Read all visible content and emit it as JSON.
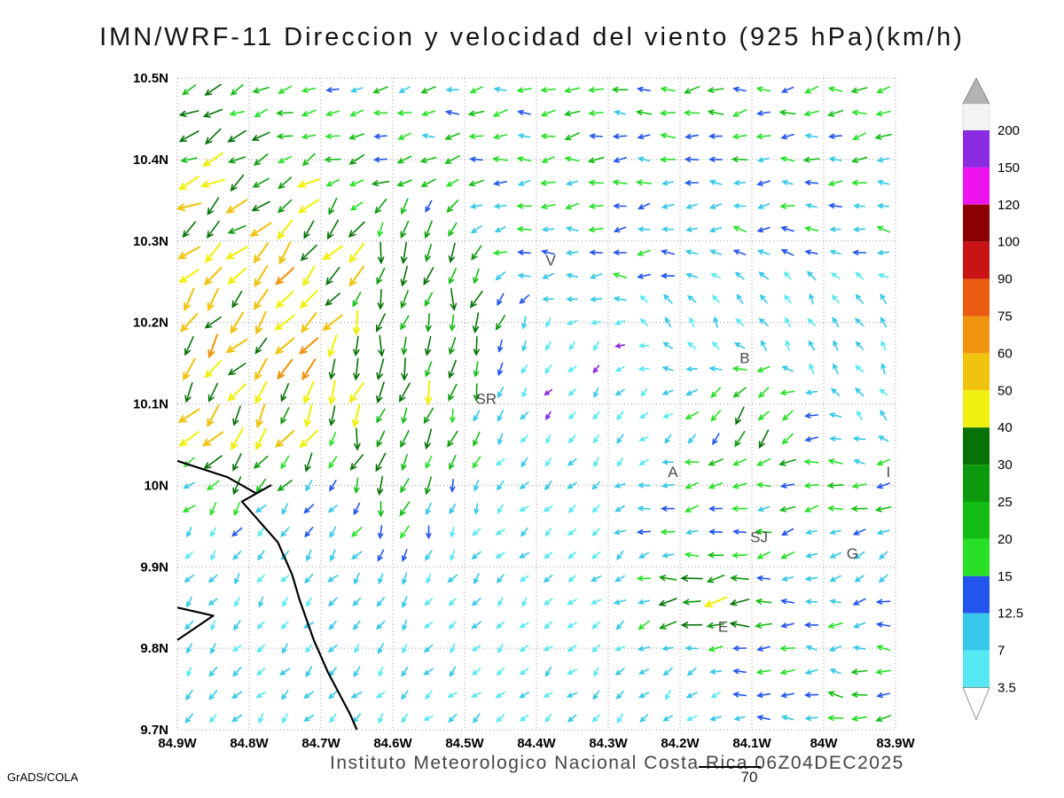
{
  "title": "IMN/WRF-11 Direccion y velocidad del viento (925 hPa)(km/h)",
  "footer": {
    "institute": "Instituto Meteorologico Nacional Costa Rica 06Z04DEC2025",
    "credit": "GrADS/COLA",
    "scale_label": "70"
  },
  "chart_data": {
    "type": "vector_field",
    "title": "IMN/WRF-11 Direccion y velocidad del viento (925 hPa)(km/h)",
    "model": "IMN/WRF-11",
    "variable": "Direccion y velocidad del viento",
    "level": "925 hPa",
    "units": "km/h",
    "valid_time": "06Z04DEC2025",
    "region": "Costa Rica",
    "lon_w": [
      84.9,
      83.9
    ],
    "lat_n": [
      9.7,
      10.5
    ],
    "x_axis": {
      "ticks": [
        "84.9W",
        "84.8W",
        "84.7W",
        "84.6W",
        "84.5W",
        "84.4W",
        "84.3W",
        "84.2W",
        "84.1W",
        "84W",
        "83.9W"
      ],
      "step_deg": 0.1
    },
    "y_axis": {
      "ticks": [
        "10.5N",
        "10.4N",
        "10.3N",
        "10.2N",
        "10.1N",
        "10N",
        "9.9N",
        "9.8N",
        "9.7N"
      ],
      "step_deg": 0.1
    },
    "grid": {
      "cols": 30,
      "rows": 28,
      "gridlines": "dotted"
    },
    "colorbar": {
      "position": "right",
      "labels_top_to_bottom": [
        "200",
        "150",
        "120",
        "100",
        "90",
        "75",
        "60",
        "50",
        "40",
        "30",
        "25",
        "20",
        "15",
        "12.5",
        "7",
        "3.5"
      ],
      "levels_ascending": [
        3.5,
        7,
        12.5,
        15,
        20,
        25,
        30,
        40,
        50,
        60,
        75,
        90,
        100,
        120,
        150,
        200
      ],
      "band_colors_top_to_bottom": [
        "#f4f4f4",
        "#8a2be2",
        "#ee14ee",
        "#8b0000",
        "#c81414",
        "#ea5c12",
        "#f0940f",
        "#f0c30f",
        "#f0f00f",
        "#077207",
        "#0c9a0c",
        "#14bd14",
        "#28e028",
        "#2255ee",
        "#35c8e8",
        "#55e8f2"
      ],
      "arrow_colors_ascending": [
        "#55e8f2",
        "#35c8e8",
        "#2255ee",
        "#28e028",
        "#14bd14",
        "#0c9a0c",
        "#077207",
        "#f0f00f",
        "#f0c30f",
        "#f0940f",
        "#ea5c12",
        "#c81414",
        "#8b0000",
        "#ee14ee",
        "#8a2be2",
        "#f4f4f4"
      ],
      "calm_arrow_color": "#8822dd",
      "top_cap_color": "#b3b3b3",
      "bottom_cap_color": "#ffffff"
    },
    "city_labels": [
      {
        "label": "V",
        "lat": 10.27,
        "lon": 84.38
      },
      {
        "label": "B",
        "lat": 10.15,
        "lon": 84.11
      },
      {
        "label": "SR",
        "lat": 10.1,
        "lon": 84.47
      },
      {
        "label": "A",
        "lat": 10.01,
        "lon": 84.21
      },
      {
        "label": "SJ",
        "lat": 9.93,
        "lon": 84.09
      },
      {
        "label": "G",
        "lat": 9.91,
        "lon": 83.96
      },
      {
        "label": "E",
        "lat": 9.82,
        "lon": 84.14
      },
      {
        "label": "I",
        "lat": 10.01,
        "lon": 83.91
      }
    ],
    "coastline": [
      [
        [
          10.03,
          84.9
        ],
        [
          10.01,
          84.83
        ],
        [
          9.99,
          84.79
        ],
        [
          10.0,
          84.77
        ],
        [
          9.98,
          84.81
        ],
        [
          9.95,
          84.78
        ],
        [
          9.93,
          84.76
        ],
        [
          9.89,
          84.74
        ],
        [
          9.86,
          84.73
        ],
        [
          9.81,
          84.71
        ],
        [
          9.77,
          84.69
        ],
        [
          9.72,
          84.66
        ],
        [
          9.7,
          84.65
        ]
      ],
      [
        [
          9.85,
          84.9
        ],
        [
          9.84,
          84.85
        ],
        [
          9.81,
          84.9
        ]
      ]
    ],
    "flow_regions": [
      {
        "name": "north-trade-band",
        "lat": 10.45,
        "lon": 84.4,
        "rlat": 0.07,
        "rlon": 0.55,
        "dir": 187,
        "speed": 17,
        "w": 1.2
      },
      {
        "name": "north-east-band",
        "lat": 10.33,
        "lon": 84.15,
        "rlat": 0.06,
        "rlon": 0.35,
        "dir": 183,
        "speed": 13,
        "w": 0.9
      },
      {
        "name": "nw-corner-jet",
        "lat": 10.38,
        "lon": 84.86,
        "rlat": 0.09,
        "rlon": 0.09,
        "dir": 212,
        "speed": 38,
        "w": 1.1
      },
      {
        "name": "west-slope-jet",
        "lat": 10.2,
        "lon": 84.78,
        "rlat": 0.14,
        "rlon": 0.09,
        "dir": 232,
        "speed": 50,
        "w": 1.3
      },
      {
        "name": "central-southerly",
        "lat": 10.13,
        "lon": 84.58,
        "rlat": 0.16,
        "rlon": 0.08,
        "dir": 258,
        "speed": 34,
        "w": 1.1
      },
      {
        "name": "south-calm",
        "lat": 9.85,
        "lon": 84.45,
        "rlat": 0.16,
        "rlon": 0.4,
        "dir": 225,
        "speed": 6,
        "w": 1.0
      },
      {
        "name": "valley-easterly",
        "lat": 9.97,
        "lon": 84.13,
        "rlat": 0.05,
        "rlon": 0.15,
        "dir": 185,
        "speed": 20,
        "w": 0.9
      },
      {
        "name": "b-area-sw",
        "lat": 10.08,
        "lon": 84.1,
        "rlat": 0.05,
        "rlon": 0.06,
        "dir": 228,
        "speed": 30,
        "w": 0.8
      },
      {
        "name": "east-mid-calm",
        "lat": 10.2,
        "lon": 84.02,
        "rlat": 0.1,
        "rlon": 0.15,
        "dir": 120,
        "speed": 7,
        "w": 0.8
      },
      {
        "name": "e-area-gusts",
        "lat": 9.86,
        "lon": 84.16,
        "rlat": 0.045,
        "rlon": 0.07,
        "dir": 185,
        "speed": 45,
        "w": 1.2
      },
      {
        "name": "se-greens",
        "lat": 9.77,
        "lon": 83.98,
        "rlat": 0.07,
        "rlon": 0.12,
        "dir": 175,
        "speed": 18,
        "w": 0.8
      },
      {
        "name": "center-calm",
        "lat": 10.05,
        "lon": 84.35,
        "rlat": 0.1,
        "rlon": 0.12,
        "dir": 230,
        "speed": 5,
        "w": 0.7
      },
      {
        "name": "east-edge-easterly",
        "lat": 10.0,
        "lon": 83.93,
        "rlat": 0.04,
        "rlon": 0.06,
        "dir": 182,
        "speed": 16,
        "w": 0.6
      },
      {
        "name": "sw-coast",
        "lat": 9.8,
        "lon": 84.78,
        "rlat": 0.1,
        "rlon": 0.12,
        "dir": 235,
        "speed": 10,
        "w": 0.9
      }
    ]
  }
}
